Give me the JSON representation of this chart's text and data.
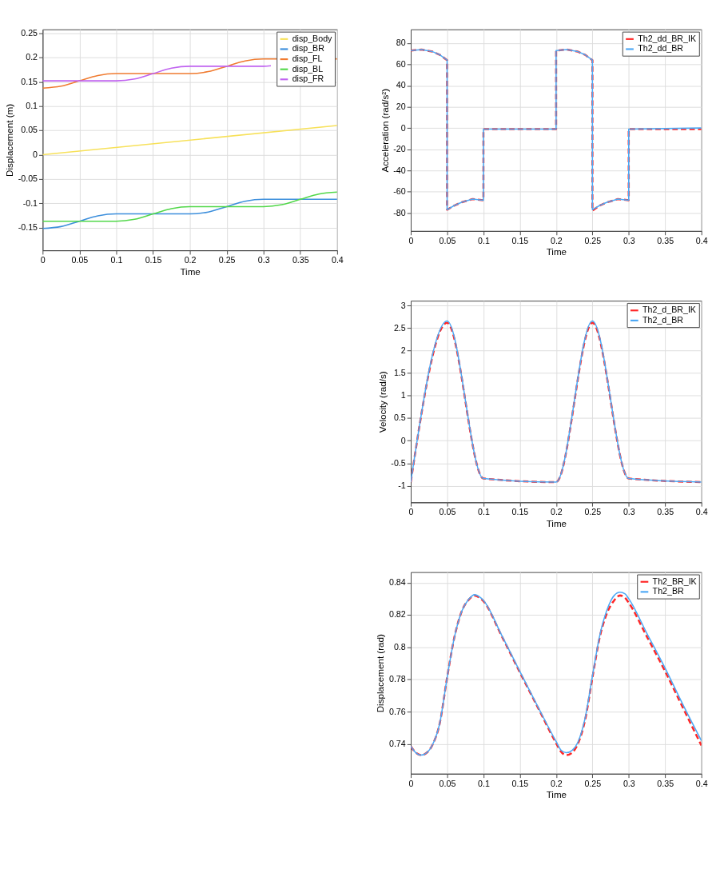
{
  "chart_data": [
    {
      "type": "line",
      "xlabel": "Time",
      "ylabel": "Displacement (m)",
      "xlim": [
        0,
        0.4
      ],
      "ylim": [
        -0.197,
        0.258
      ],
      "xticks": [
        0,
        0.05,
        0.1,
        0.15,
        0.2,
        0.25,
        0.3,
        0.35,
        0.4
      ],
      "yticks": [
        -0.15,
        -0.1,
        -0.05,
        0,
        0.05,
        0.1,
        0.15,
        0.2,
        0.25
      ],
      "grid": true,
      "legend": "top right",
      "series": [
        {
          "name": "disp_Body",
          "color": "#f7e15a",
          "line_style": "solid",
          "x": [
            0,
            0.4
          ],
          "values": [
            0,
            0.06
          ]
        },
        {
          "name": "disp_BR",
          "color": "#3d8fdc",
          "line_style": "solid",
          "x": [
            0,
            0.025,
            0.05,
            0.075,
            0.1,
            0.2,
            0.225,
            0.25,
            0.275,
            0.3,
            0.4
          ],
          "values": [
            -0.152,
            -0.148,
            -0.137,
            -0.126,
            -0.122,
            -0.122,
            -0.118,
            -0.107,
            -0.096,
            -0.092,
            -0.092
          ]
        },
        {
          "name": "disp_FL",
          "color": "#f07b30",
          "line_style": "solid",
          "x": [
            0,
            0.025,
            0.05,
            0.075,
            0.1,
            0.2,
            0.225,
            0.25,
            0.275,
            0.3,
            0.4
          ],
          "values": [
            0.137,
            0.141,
            0.152,
            0.163,
            0.167,
            0.167,
            0.171,
            0.182,
            0.193,
            0.197,
            0.197
          ]
        },
        {
          "name": "disp_BL",
          "color": "#52d84a",
          "line_style": "solid",
          "x": [
            0,
            0.1,
            0.125,
            0.15,
            0.175,
            0.2,
            0.3,
            0.325,
            0.35,
            0.375,
            0.4
          ],
          "values": [
            -0.137,
            -0.137,
            -0.133,
            -0.122,
            -0.111,
            -0.107,
            -0.107,
            -0.103,
            -0.092,
            -0.081,
            -0.077
          ]
        },
        {
          "name": "disp_FR",
          "color": "#c063f0",
          "line_style": "solid",
          "x": [
            0,
            0.1,
            0.125,
            0.15,
            0.175,
            0.2,
            0.3,
            0.31
          ],
          "values": [
            0.152,
            0.152,
            0.156,
            0.167,
            0.178,
            0.182,
            0.182,
            0.183
          ]
        }
      ]
    },
    {
      "type": "line",
      "xlabel": "Time",
      "ylabel": "Acceleration (rad/s²)",
      "xlim": [
        0,
        0.4
      ],
      "ylim": [
        -97,
        93
      ],
      "xticks": [
        0,
        0.05,
        0.1,
        0.15,
        0.2,
        0.25,
        0.3,
        0.35,
        0.4
      ],
      "yticks": [
        -80,
        -60,
        -40,
        -20,
        0,
        20,
        40,
        60,
        80
      ],
      "grid": true,
      "legend": "top right",
      "series": [
        {
          "name": "Th2_dd_BR_IK",
          "color": "#ff2626",
          "line_style": "dashed",
          "x": [
            0,
            0.015,
            0.03,
            0.04,
            0.05,
            0.05,
            0.06,
            0.07,
            0.085,
            0.1,
            0.1,
            0.2,
            0.2,
            0.215,
            0.23,
            0.24,
            0.25,
            0.25,
            0.26,
            0.27,
            0.285,
            0.3,
            0.3,
            0.4
          ],
          "values": [
            73,
            74,
            72,
            69,
            64,
            -77,
            -73,
            -70,
            -67,
            -68,
            -1,
            -1,
            73,
            74,
            72,
            69,
            64,
            -78,
            -73,
            -70,
            -67,
            -68,
            -1,
            -1
          ]
        },
        {
          "name": "Th2_dd_BR",
          "color": "#4da8f5",
          "line_style": "solid",
          "x": [
            0,
            0.015,
            0.03,
            0.04,
            0.05,
            0.05,
            0.06,
            0.07,
            0.085,
            0.1,
            0.1,
            0.2,
            0.2,
            0.215,
            0.23,
            0.24,
            0.25,
            0.25,
            0.26,
            0.27,
            0.285,
            0.3,
            0.3,
            0.4
          ],
          "values": [
            73,
            74,
            72,
            69,
            64,
            -77,
            -73,
            -70,
            -67,
            -68,
            -1,
            -1,
            73,
            74,
            72,
            69,
            64,
            -77,
            -73,
            -70,
            -67,
            -68,
            -1,
            0
          ]
        }
      ]
    },
    {
      "type": "line",
      "xlabel": "Time",
      "ylabel": "Velocity (rad/s)",
      "xlim": [
        0,
        0.4
      ],
      "ylim": [
        -1.37,
        3.11
      ],
      "xticks": [
        0,
        0.05,
        0.1,
        0.15,
        0.2,
        0.25,
        0.3,
        0.35,
        0.4
      ],
      "yticks": [
        -1,
        -0.5,
        0,
        0.5,
        1,
        1.5,
        2,
        2.5,
        3
      ],
      "grid": true,
      "legend": "top right",
      "series": [
        {
          "name": "Th2_d_BR_IK",
          "color": "#ff2626",
          "line_style": "dashed",
          "x": [
            0,
            0.05,
            0.1,
            0.2,
            0.25,
            0.3,
            0.4
          ],
          "values": [
            -0.92,
            2.62,
            -0.84,
            -0.92,
            2.62,
            -0.84,
            -0.92
          ]
        },
        {
          "name": "Th2_d_BR",
          "color": "#4da8f5",
          "line_style": "solid",
          "x": [
            0,
            0.05,
            0.1,
            0.2,
            0.25,
            0.3,
            0.4
          ],
          "values": [
            -0.92,
            2.66,
            -0.84,
            -0.92,
            2.66,
            -0.84,
            -0.92
          ]
        }
      ]
    },
    {
      "type": "line",
      "xlabel": "Time",
      "ylabel": "Displacement (rad)",
      "xlim": [
        0,
        0.4
      ],
      "ylim": [
        0.7215,
        0.8465
      ],
      "xticks": [
        0,
        0.05,
        0.1,
        0.15,
        0.2,
        0.25,
        0.3,
        0.35,
        0.4
      ],
      "yticks": [
        0.74,
        0.76,
        0.78,
        0.8,
        0.82,
        0.84
      ],
      "grid": true,
      "legend": "top right",
      "series": [
        {
          "name": "Th2_BR_IK",
          "color": "#ff2626",
          "line_style": "dashed",
          "x": [
            0,
            0.007,
            0.014,
            0.022,
            0.03,
            0.04,
            0.05,
            0.06,
            0.07,
            0.08,
            0.088,
            0.095,
            0.1,
            0.125,
            0.15,
            0.175,
            0.2,
            0.207,
            0.214,
            0.222,
            0.23,
            0.24,
            0.25,
            0.26,
            0.27,
            0.28,
            0.288,
            0.295,
            0.3,
            0.325,
            0.35,
            0.375,
            0.4
          ],
          "values": [
            0.7385,
            0.7345,
            0.733,
            0.7345,
            0.7395,
            0.753,
            0.781,
            0.806,
            0.822,
            0.8295,
            0.832,
            0.8305,
            0.8285,
            0.807,
            0.7845,
            0.7625,
            0.7405,
            0.735,
            0.733,
            0.7345,
            0.74,
            0.755,
            0.781,
            0.806,
            0.821,
            0.829,
            0.832,
            0.8305,
            0.8275,
            0.8065,
            0.785,
            0.762,
            0.739
          ]
        },
        {
          "name": "Th2_BR",
          "color": "#4da8f5",
          "line_style": "solid",
          "x": [
            0,
            0.007,
            0.014,
            0.022,
            0.03,
            0.04,
            0.05,
            0.06,
            0.07,
            0.08,
            0.088,
            0.095,
            0.1,
            0.125,
            0.15,
            0.175,
            0.2,
            0.207,
            0.214,
            0.222,
            0.23,
            0.24,
            0.25,
            0.26,
            0.27,
            0.28,
            0.288,
            0.295,
            0.3,
            0.325,
            0.35,
            0.375,
            0.4
          ],
          "values": [
            0.7385,
            0.7345,
            0.733,
            0.7345,
            0.7395,
            0.753,
            0.781,
            0.806,
            0.822,
            0.8298,
            0.8325,
            0.831,
            0.829,
            0.8075,
            0.785,
            0.763,
            0.7415,
            0.736,
            0.7345,
            0.736,
            0.741,
            0.756,
            0.782,
            0.807,
            0.823,
            0.832,
            0.834,
            0.833,
            0.83,
            0.8085,
            0.787,
            0.764,
            0.742
          ]
        }
      ]
    }
  ]
}
